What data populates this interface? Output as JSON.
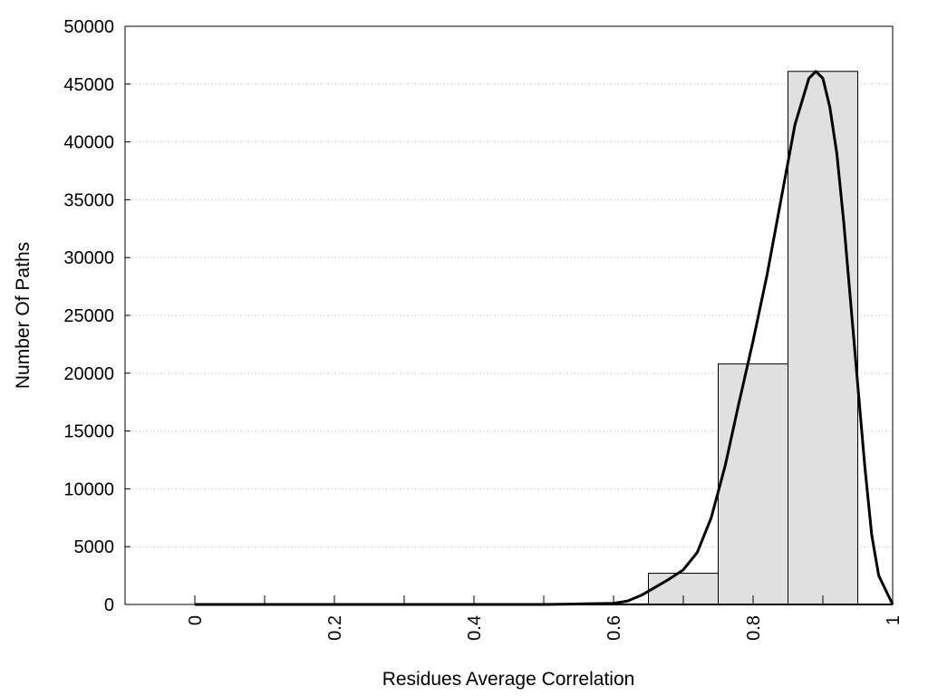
{
  "chart_data": {
    "type": "bar",
    "xlabel": "Residues Average Correlation",
    "ylabel": "Number Of Paths",
    "xlim": [
      -0.1,
      1.0
    ],
    "ylim": [
      0,
      50000
    ],
    "grid": true,
    "x_ticks": [
      {
        "value": 0,
        "label": "0"
      },
      {
        "value": 0.2,
        "label": "0.2"
      },
      {
        "value": 0.4,
        "label": "0.4"
      },
      {
        "value": 0.6,
        "label": "0.6"
      },
      {
        "value": 0.8,
        "label": "0.8"
      },
      {
        "value": 1.0,
        "label": "1"
      }
    ],
    "y_ticks": [
      {
        "value": 0,
        "label": "0"
      },
      {
        "value": 5000,
        "label": "5000"
      },
      {
        "value": 10000,
        "label": "10000"
      },
      {
        "value": 15000,
        "label": "15000"
      },
      {
        "value": 20000,
        "label": "20000"
      },
      {
        "value": 25000,
        "label": "25000"
      },
      {
        "value": 30000,
        "label": "30000"
      },
      {
        "value": 35000,
        "label": "35000"
      },
      {
        "value": 40000,
        "label": "40000"
      },
      {
        "value": 45000,
        "label": "45000"
      },
      {
        "value": 50000,
        "label": "50000"
      }
    ],
    "bins": [
      {
        "x0": -0.05,
        "x1": 0.05,
        "value": 0
      },
      {
        "x0": 0.05,
        "x1": 0.15,
        "value": 0
      },
      {
        "x0": 0.15,
        "x1": 0.25,
        "value": 0
      },
      {
        "x0": 0.25,
        "x1": 0.35,
        "value": 0
      },
      {
        "x0": 0.35,
        "x1": 0.45,
        "value": 0
      },
      {
        "x0": 0.45,
        "x1": 0.55,
        "value": 0
      },
      {
        "x0": 0.55,
        "x1": 0.65,
        "value": 50
      },
      {
        "x0": 0.65,
        "x1": 0.75,
        "value": 2700
      },
      {
        "x0": 0.75,
        "x1": 0.85,
        "value": 20800
      },
      {
        "x0": 0.85,
        "x1": 0.95,
        "value": 46100
      }
    ],
    "bar_fill": "#e0e0e0",
    "curve": {
      "color": "#000000",
      "x": [
        0,
        0.5,
        0.55,
        0.6,
        0.62,
        0.64,
        0.66,
        0.68,
        0.7,
        0.72,
        0.74,
        0.76,
        0.78,
        0.8,
        0.82,
        0.84,
        0.86,
        0.88,
        0.89,
        0.9,
        0.91,
        0.92,
        0.93,
        0.94,
        0.95,
        0.96,
        0.97,
        0.98,
        1.0
      ],
      "y": [
        0,
        0,
        50,
        100,
        300,
        800,
        1500,
        2200,
        3000,
        4500,
        7500,
        12000,
        17500,
        22800,
        28500,
        35000,
        41500,
        45500,
        46100,
        45500,
        43000,
        39000,
        33000,
        26000,
        19000,
        12000,
        6000,
        2500,
        0
      ]
    }
  }
}
